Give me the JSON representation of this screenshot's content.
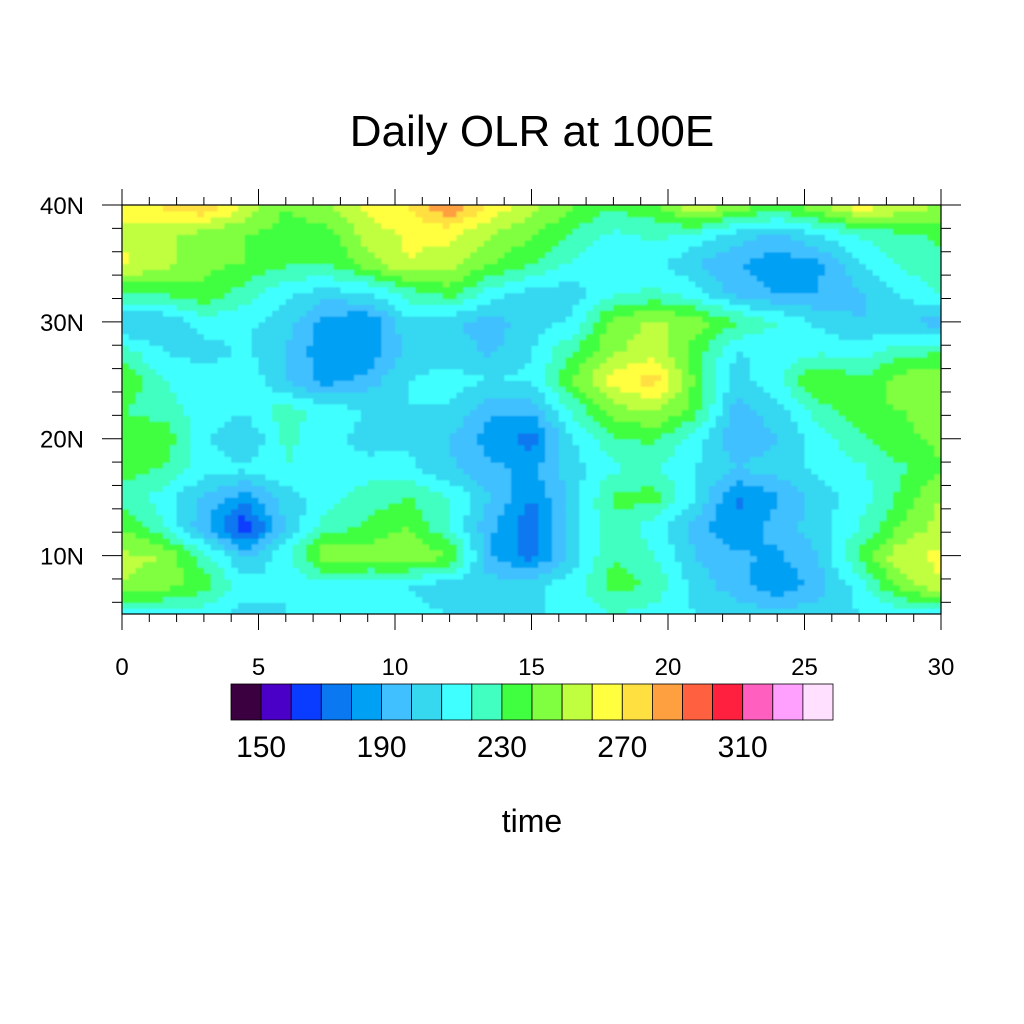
{
  "chart_data": {
    "type": "heatmap",
    "title": "Daily OLR at 100E",
    "xlabel": "time",
    "ylabel": "",
    "xlim": [
      0,
      30
    ],
    "ylim": [
      5,
      40
    ],
    "x_ticks": [
      0,
      5,
      10,
      15,
      20,
      25,
      30
    ],
    "x_tick_labels": [
      "0",
      "5",
      "10",
      "15",
      "20",
      "25",
      "30"
    ],
    "y_ticks": [
      10,
      20,
      30,
      40
    ],
    "y_tick_labels": [
      "10N",
      "20N",
      "30N",
      "40N"
    ],
    "colorbar": {
      "levels": [
        150,
        160,
        170,
        180,
        190,
        200,
        210,
        220,
        230,
        240,
        250,
        260,
        270,
        280,
        290,
        300,
        310,
        320,
        330
      ],
      "colors": [
        "#3a0040",
        "#4b00c8",
        "#0a3cff",
        "#0a78f0",
        "#00a0f5",
        "#40c0ff",
        "#36d8f0",
        "#40ffff",
        "#40ffc0",
        "#40ff40",
        "#80ff40",
        "#c0ff40",
        "#ffff40",
        "#ffe040",
        "#ffa040",
        "#ff6040",
        "#ff2040",
        "#ff60c0",
        "#ffa0ff",
        "#ffe0ff"
      ],
      "labels": [
        "150",
        "190",
        "230",
        "270",
        "310"
      ],
      "label_values": [
        150,
        190,
        230,
        270,
        310
      ]
    },
    "x": [
      0,
      1.5,
      3,
      4.5,
      6,
      7.5,
      9,
      10.5,
      12,
      13.5,
      15,
      16.5,
      18,
      19.5,
      21,
      22.5,
      24,
      25.5,
      27,
      28.5,
      30
    ],
    "y": [
      5,
      7.5,
      10,
      12.5,
      15,
      17.5,
      20,
      22.5,
      25,
      27.5,
      30,
      32.5,
      35,
      37.5,
      40
    ],
    "z": [
      [
        210,
        215,
        215,
        205,
        210,
        215,
        210,
        212,
        210,
        210,
        210,
        210,
        220,
        215,
        210,
        205,
        205,
        205,
        210,
        212,
        215
      ],
      [
        250,
        245,
        235,
        215,
        210,
        215,
        215,
        210,
        205,
        205,
        208,
        215,
        235,
        228,
        205,
        195,
        180,
        195,
        215,
        245,
        260
      ],
      [
        252,
        250,
        225,
        198,
        218,
        250,
        245,
        250,
        240,
        190,
        175,
        205,
        230,
        220,
        200,
        192,
        188,
        200,
        232,
        258,
        262
      ],
      [
        240,
        222,
        192,
        160,
        200,
        225,
        232,
        240,
        220,
        192,
        172,
        205,
        228,
        215,
        195,
        180,
        195,
        205,
        220,
        240,
        255
      ],
      [
        225,
        215,
        198,
        185,
        205,
        215,
        225,
        230,
        220,
        200,
        180,
        205,
        232,
        235,
        210,
        178,
        188,
        205,
        215,
        232,
        250
      ],
      [
        235,
        230,
        215,
        212,
        220,
        215,
        215,
        212,
        202,
        192,
        188,
        205,
        218,
        222,
        210,
        200,
        205,
        212,
        218,
        228,
        240
      ],
      [
        240,
        238,
        212,
        200,
        222,
        215,
        205,
        208,
        200,
        185,
        175,
        210,
        228,
        232,
        215,
        192,
        200,
        215,
        228,
        238,
        242
      ],
      [
        230,
        225,
        215,
        212,
        225,
        215,
        210,
        210,
        208,
        192,
        192,
        222,
        245,
        252,
        235,
        195,
        205,
        225,
        238,
        240,
        242
      ],
      [
        240,
        220,
        215,
        218,
        200,
        185,
        195,
        210,
        215,
        210,
        212,
        240,
        265,
        275,
        238,
        205,
        218,
        242,
        232,
        245,
        250
      ],
      [
        225,
        210,
        205,
        212,
        200,
        182,
        180,
        205,
        205,
        198,
        210,
        230,
        248,
        255,
        235,
        210,
        212,
        218,
        215,
        225,
        230
      ],
      [
        198,
        200,
        215,
        212,
        205,
        185,
        180,
        208,
        202,
        195,
        205,
        212,
        245,
        252,
        245,
        232,
        220,
        208,
        200,
        202,
        195
      ],
      [
        230,
        232,
        238,
        225,
        212,
        205,
        210,
        225,
        235,
        215,
        205,
        205,
        218,
        222,
        215,
        195,
        190,
        190,
        198,
        210,
        222
      ],
      [
        262,
        255,
        242,
        240,
        232,
        230,
        245,
        260,
        255,
        240,
        230,
        218,
        212,
        215,
        200,
        192,
        182,
        188,
        208,
        222,
        228
      ],
      [
        258,
        252,
        245,
        240,
        236,
        235,
        255,
        262,
        262,
        250,
        242,
        228,
        218,
        222,
        218,
        205,
        198,
        210,
        222,
        228,
        232
      ],
      [
        262,
        272,
        282,
        258,
        240,
        248,
        262,
        270,
        292,
        268,
        255,
        240,
        232,
        238,
        262,
        248,
        238,
        248,
        268,
        258,
        250
      ]
    ]
  }
}
